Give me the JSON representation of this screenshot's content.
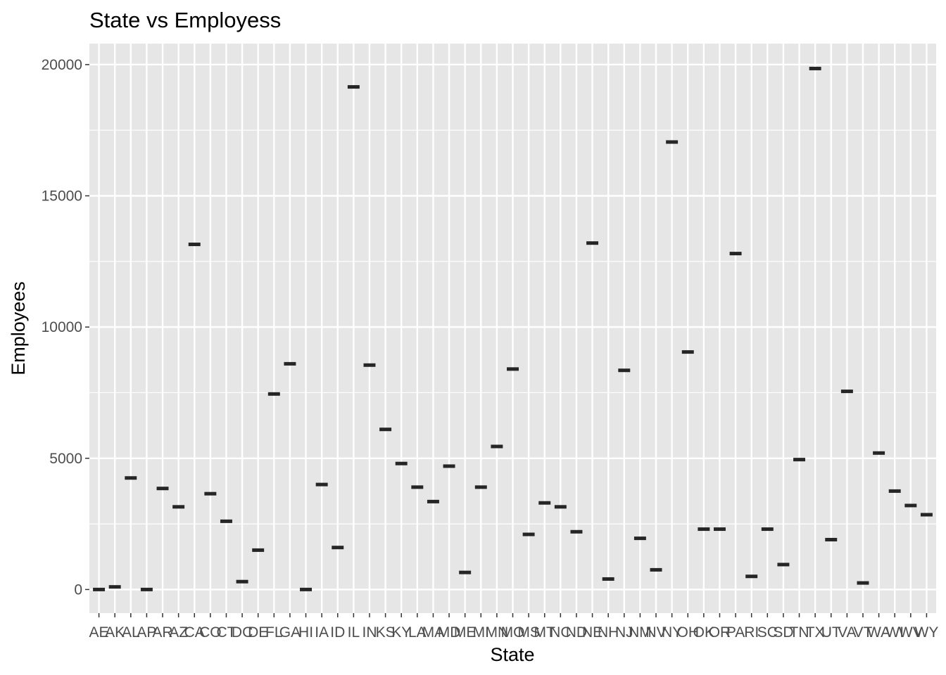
{
  "chart_data": {
    "type": "boxplot",
    "title": "State vs Employess",
    "xlabel": "State",
    "ylabel": "Employees",
    "ylim": [
      -900,
      20800
    ],
    "yticks": [
      0,
      5000,
      10000,
      15000,
      20000
    ],
    "grid": true,
    "legend": "none",
    "colors": {
      "panel": "#e6e6e6",
      "grid": "#ffffff",
      "mark": "#262626"
    },
    "categories": [
      "AE",
      "AK",
      "AL",
      "AP",
      "AR",
      "AZ",
      "CA",
      "CO",
      "CT",
      "DC",
      "DE",
      "FL",
      "GA",
      "HI",
      "IA",
      "ID",
      "IL",
      "IN",
      "KS",
      "KY",
      "LA",
      "MA",
      "MD",
      "ME",
      "MI",
      "MN",
      "MO",
      "MS",
      "MT",
      "NC",
      "ND",
      "NE",
      "NH",
      "NJ",
      "NM",
      "NV",
      "NY",
      "OH",
      "OK",
      "OR",
      "PA",
      "RI",
      "SC",
      "SD",
      "TN",
      "TX",
      "UT",
      "VA",
      "VT",
      "WA",
      "WI",
      "WV",
      "WY"
    ],
    "values": [
      0,
      100,
      4250,
      0,
      3850,
      3150,
      13150,
      3650,
      2600,
      300,
      1500,
      7450,
      8600,
      0,
      4000,
      1600,
      19150,
      8550,
      6100,
      4800,
      3900,
      3350,
      4700,
      650,
      3900,
      5450,
      8400,
      2100,
      3300,
      3150,
      2200,
      13200,
      400,
      8350,
      1950,
      750,
      17050,
      9050,
      2300,
      2300,
      12800,
      500,
      2300,
      950,
      4950,
      19850,
      1900,
      7550,
      250,
      5200,
      3750,
      3200,
      2850
    ]
  }
}
